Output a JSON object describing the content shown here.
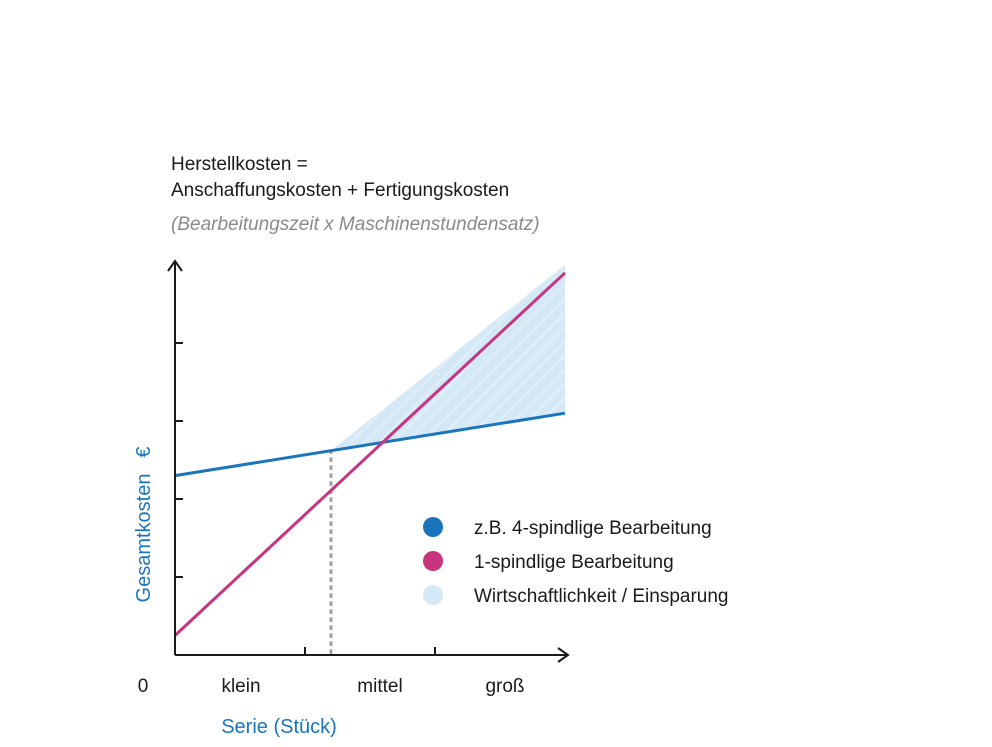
{
  "chart_data": {
    "type": "line",
    "title_line1": "Herstellkosten =",
    "title_line2": "Anschaffungskosten + Fertigungskosten",
    "subtitle": "(Bearbeitungszeit x Maschinenstundensatz)",
    "xlabel": "Serie (Stück)",
    "ylabel": "Gesamtkosten",
    "yunit": "€",
    "origin_label": "0",
    "categories": [
      "klein",
      "mittel",
      "groß"
    ],
    "x": [
      0,
      3
    ],
    "xlim": [
      0,
      3
    ],
    "ylim": [
      0,
      5
    ],
    "series": [
      {
        "name": "z.B. 4-spindlige Bearbeitung",
        "color": "#1a75bc",
        "values": [
          2.3,
          3.1
        ]
      },
      {
        "name": "1-spindlige Bearbeitung",
        "color": "#c8347f",
        "values": [
          0.25,
          4.9
        ]
      }
    ],
    "region": {
      "name": "Wirtschaftlichkeit / Einsparung",
      "color": "#d4e8f6"
    },
    "break_even_x": 1.2,
    "grid": false,
    "legend_position": "right"
  }
}
